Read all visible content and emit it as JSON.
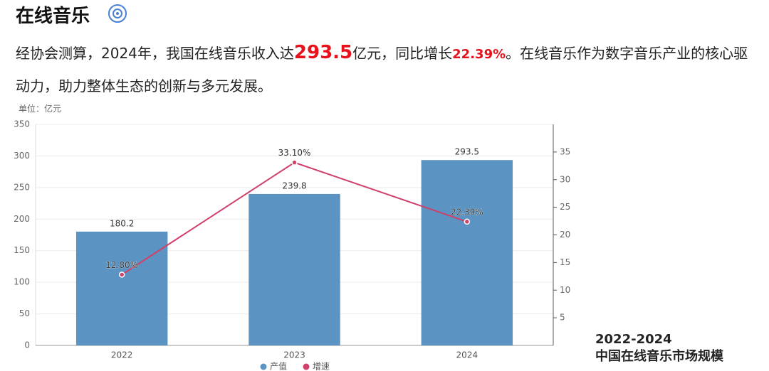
{
  "header": {
    "title": "在线音乐"
  },
  "paragraph": {
    "parts": [
      "经协会测算，2024年，我国在线音乐收入达",
      "293.5",
      "亿元，同比增长",
      "22.39%",
      "。在线音乐作为数字音乐产业的核心驱动力，助力整体生态的创新与多元发展。"
    ]
  },
  "chart_data": {
    "type": "bar",
    "unit_label": "单位：亿元",
    "categories": [
      "2022",
      "2023",
      "2024"
    ],
    "series": [
      {
        "name": "产值",
        "type": "bar",
        "color": "#5b93c2",
        "values": [
          180.2,
          239.8,
          293.5
        ]
      },
      {
        "name": "增速",
        "type": "line",
        "axis": "y2",
        "color": "#d0416a",
        "values": [
          12.8,
          33.1,
          22.39
        ],
        "value_labels": [
          "12.80%",
          "33.10%",
          "22.39%"
        ]
      }
    ],
    "ylim": [
      0,
      350
    ],
    "yticks": [
      0,
      50,
      100,
      150,
      200,
      250,
      300,
      350
    ],
    "y2lim": [
      0,
      40
    ],
    "y2ticks": [
      5,
      10,
      15,
      20,
      25,
      30,
      35
    ],
    "grid": true,
    "legend": "bottom",
    "caption": [
      "2022-2024",
      "中国在线音乐市场规模"
    ]
  }
}
